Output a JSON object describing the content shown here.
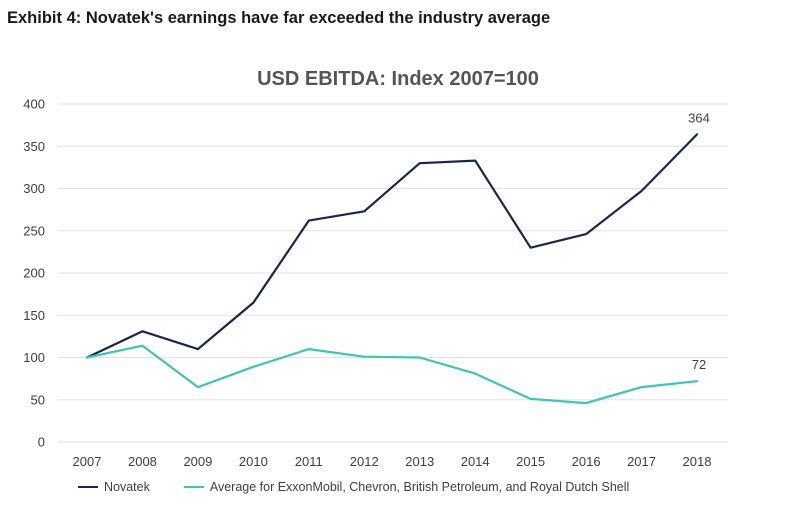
{
  "exhibit_title": "Exhibit 4: Novatek's earnings have far exceeded the industry average",
  "chart_data": {
    "type": "line",
    "title": "USD EBITDA: Index 2007=100",
    "xlabel": "",
    "ylabel": "",
    "x": [
      "2007",
      "2008",
      "2009",
      "2010",
      "2011",
      "2012",
      "2013",
      "2014",
      "2015",
      "2016",
      "2017",
      "2018"
    ],
    "ylim": [
      0,
      400
    ],
    "yticks": [
      0,
      50,
      100,
      150,
      200,
      250,
      300,
      350,
      400
    ],
    "grid": true,
    "legend_position": "bottom",
    "series": [
      {
        "name": "Novatek",
        "color": "#1b2650",
        "values": [
          100,
          131,
          110,
          165,
          262,
          273,
          330,
          333,
          230,
          246,
          297,
          364
        ],
        "end_label": "364"
      },
      {
        "name": "Average for ExxonMobil, Chevron, British Petroleum, and Royal Dutch Shell",
        "color": "#3cc6b4",
        "values": [
          100,
          114,
          65,
          89,
          110,
          101,
          100,
          81,
          51,
          46,
          65,
          72
        ],
        "end_label": "72"
      }
    ]
  }
}
